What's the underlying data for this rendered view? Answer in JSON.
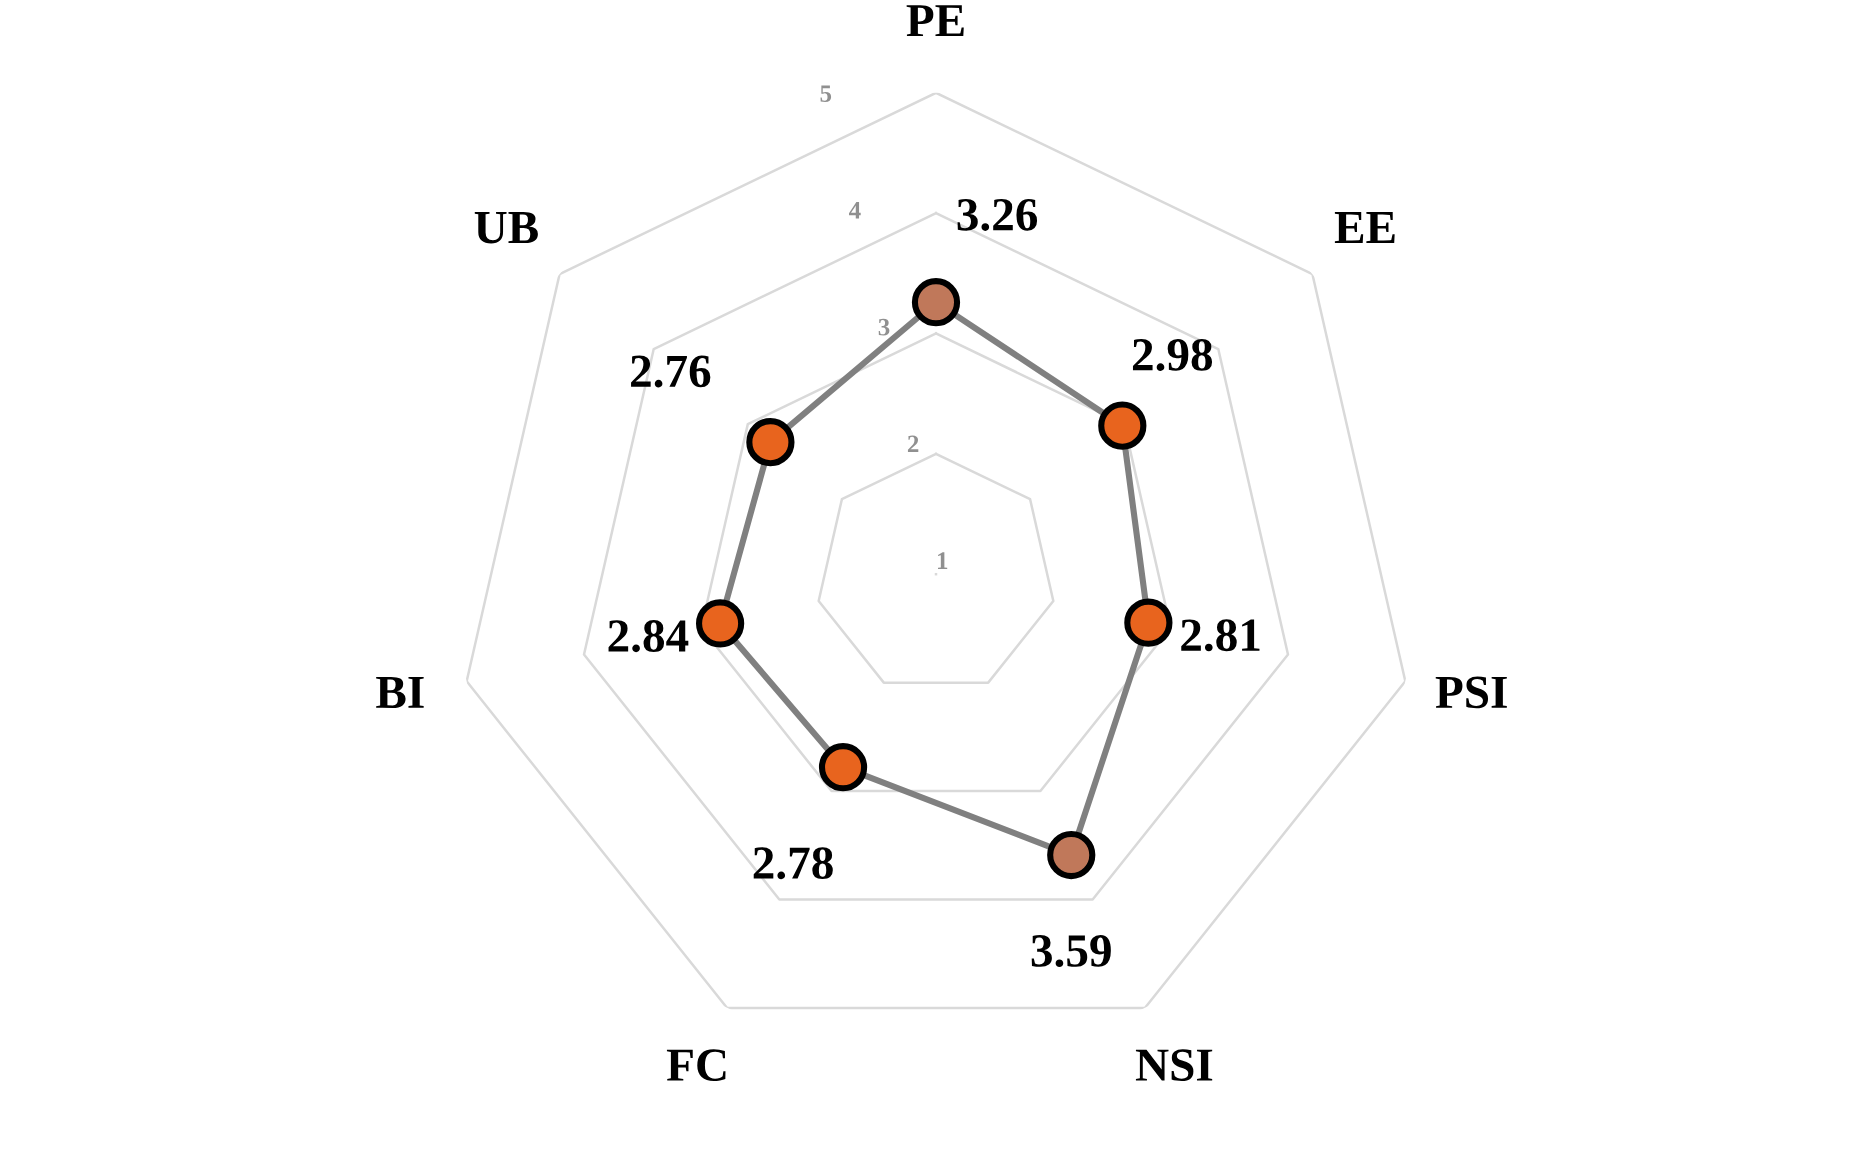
{
  "chart_data": {
    "type": "radar",
    "categories": [
      "PE",
      "EE",
      "PSI",
      "NSI",
      "FC",
      "BI",
      "UB"
    ],
    "series": [
      {
        "color": "#808080",
        "values": [
          3.26,
          2.98,
          2.81,
          3.59,
          2.78,
          2.84,
          2.76
        ],
        "colors": [
          "#c0785a",
          "#e8641e",
          "#e8641e",
          "#c0785a",
          "#e8641e",
          "#e8641e",
          "#e8641e"
        ]
      }
    ],
    "ylim": [
      1,
      5
    ],
    "yticks": [
      1,
      2,
      3,
      4,
      5
    ],
    "grid": true,
    "marker": "circle",
    "data_labels": true,
    "legend": false
  }
}
